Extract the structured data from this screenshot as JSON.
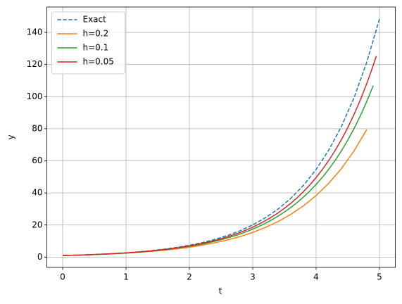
{
  "chart_data": {
    "type": "line",
    "xlabel": "t",
    "ylabel": "y",
    "xlim": [
      -0.25,
      5.25
    ],
    "xticks": [
      0,
      1,
      2,
      3,
      4,
      5
    ],
    "ylim": [
      -6.4,
      155.8
    ],
    "yticks": [
      0,
      20,
      40,
      60,
      80,
      100,
      120,
      140
    ],
    "grid": true,
    "legend": "upper left",
    "series": [
      {
        "name": "Exact",
        "color": "#1f77b4",
        "dashed": true,
        "x": [
          0,
          0.2,
          0.4,
          0.6,
          0.8,
          1.0,
          1.2,
          1.4,
          1.6,
          1.8,
          2.0,
          2.2,
          2.4,
          2.6,
          2.8,
          3.0,
          3.2,
          3.4,
          3.6,
          3.8,
          4.0,
          4.2,
          4.4,
          4.6,
          4.8,
          5.0
        ],
        "values": [
          1,
          1.221,
          1.492,
          1.822,
          2.226,
          2.718,
          3.32,
          4.055,
          4.953,
          6.05,
          7.389,
          9.025,
          11.023,
          13.464,
          16.445,
          20.086,
          24.533,
          29.964,
          36.598,
          44.701,
          54.598,
          66.686,
          81.451,
          99.484,
          121.51,
          148.413
        ]
      },
      {
        "name": "h=0.2",
        "color": "#ff7f0e",
        "x": [
          0,
          0.2,
          0.4,
          0.6,
          0.8,
          1.0,
          1.2,
          1.4,
          1.6,
          1.8,
          2.0,
          2.2,
          2.4,
          2.6,
          2.8,
          3.0,
          3.2,
          3.4,
          3.6,
          3.8,
          4.0,
          4.2,
          4.4,
          4.6,
          4.8
        ],
        "values": [
          1,
          1.2,
          1.44,
          1.728,
          2.074,
          2.488,
          2.986,
          3.583,
          4.3,
          5.16,
          6.192,
          7.43,
          8.916,
          10.699,
          12.839,
          15.407,
          18.488,
          22.186,
          26.623,
          31.948,
          38.338,
          46.005,
          55.206,
          66.247,
          79.497
        ]
      },
      {
        "name": "h=0.1",
        "color": "#2ca02c",
        "x": [
          0,
          0.1,
          0.2,
          0.3,
          0.4,
          0.5,
          0.6,
          0.7,
          0.8,
          0.9,
          1.0,
          1.1,
          1.2,
          1.3,
          1.4,
          1.5,
          1.6,
          1.7,
          1.8,
          1.9,
          2.0,
          2.1,
          2.2,
          2.3,
          2.4,
          2.5,
          2.6,
          2.7,
          2.8,
          2.9,
          3.0,
          3.1,
          3.2,
          3.3,
          3.4,
          3.5,
          3.6,
          3.7,
          3.8,
          3.9,
          4.0,
          4.1,
          4.2,
          4.3,
          4.4,
          4.5,
          4.6,
          4.7,
          4.8,
          4.9
        ],
        "values": [
          1,
          1.1,
          1.21,
          1.331,
          1.464,
          1.611,
          1.772,
          1.949,
          2.144,
          2.358,
          2.594,
          2.853,
          3.138,
          3.452,
          3.798,
          4.177,
          4.595,
          5.054,
          5.56,
          6.116,
          6.728,
          7.4,
          8.14,
          8.954,
          9.85,
          10.835,
          11.918,
          13.11,
          14.421,
          15.863,
          17.449,
          19.194,
          21.114,
          23.225,
          25.548,
          28.102,
          30.913,
          34.004,
          37.404,
          41.145,
          45.259,
          49.785,
          54.764,
          60.24,
          66.264,
          72.891,
          80.18,
          88.198,
          97.017,
          106.719
        ]
      },
      {
        "name": "h=0.05",
        "color": "#d62728",
        "x": [
          0,
          0.1,
          0.2,
          0.3,
          0.4,
          0.5,
          0.6,
          0.7,
          0.8,
          0.9,
          1.0,
          1.1,
          1.2,
          1.3,
          1.4,
          1.5,
          1.6,
          1.7,
          1.8,
          1.9,
          2.0,
          2.1,
          2.2,
          2.3,
          2.4,
          2.5,
          2.6,
          2.7,
          2.8,
          2.9,
          3.0,
          3.1,
          3.2,
          3.3,
          3.4,
          3.5,
          3.6,
          3.7,
          3.8,
          3.9,
          4.0,
          4.1,
          4.2,
          4.3,
          4.4,
          4.5,
          4.6,
          4.7,
          4.8,
          4.9,
          4.95
        ],
        "values": [
          1,
          1.103,
          1.216,
          1.34,
          1.478,
          1.629,
          1.796,
          1.98,
          2.183,
          2.407,
          2.653,
          2.925,
          3.225,
          3.556,
          3.92,
          4.322,
          4.765,
          5.253,
          5.792,
          6.386,
          7.04,
          7.762,
          8.557,
          9.434,
          10.401,
          11.467,
          12.643,
          13.939,
          15.367,
          16.943,
          18.679,
          20.594,
          22.705,
          25.032,
          27.598,
          30.426,
          33.545,
          36.984,
          40.774,
          44.954,
          49.561,
          54.642,
          60.242,
          66.417,
          73.225,
          80.73,
          89.005,
          98.128,
          108.186,
          119.277,
          125.239
        ]
      }
    ]
  }
}
